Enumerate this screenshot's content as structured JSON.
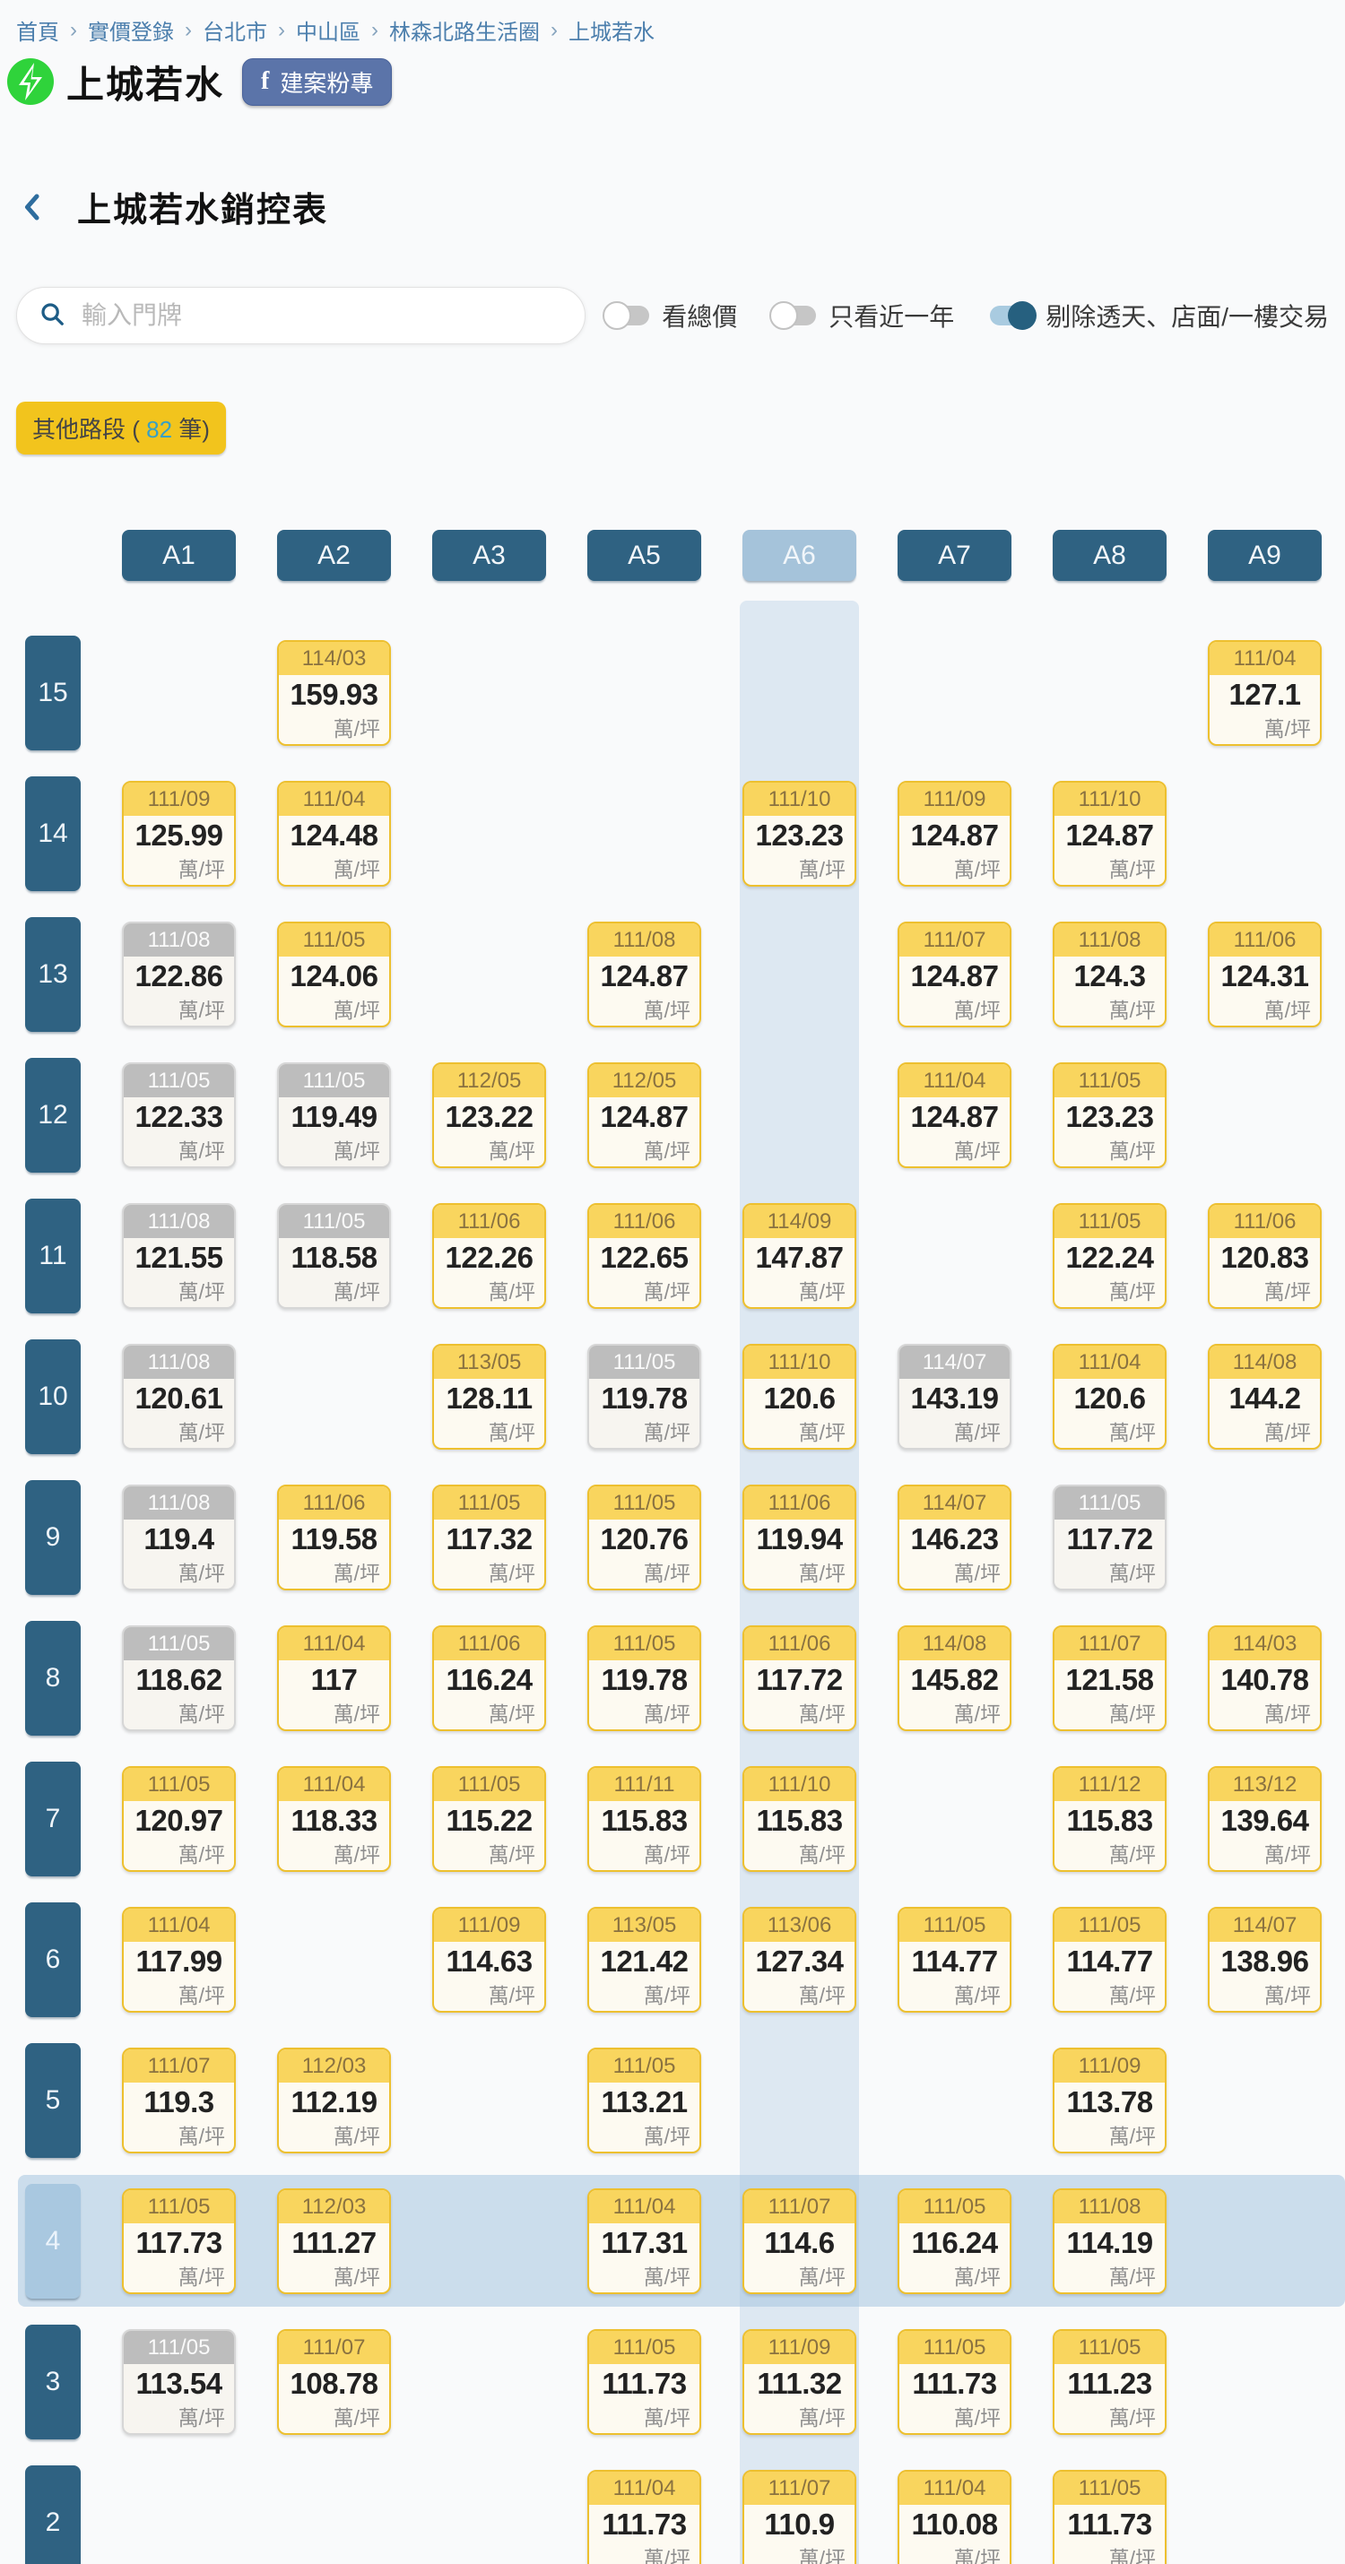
{
  "breadcrumb": {
    "separator": "›",
    "items": [
      "首頁",
      "實價登錄",
      "台北市",
      "中山區",
      "林森北路生活圈",
      "上城若水"
    ]
  },
  "header": {
    "title": "上城若水",
    "fb_icon_letter": "f",
    "fb_button": "建案粉專"
  },
  "subheader": {
    "title": "上城若水銷控表"
  },
  "controls": {
    "search": {
      "placeholder": "輸入門牌",
      "icon": "search-icon"
    },
    "toggles": [
      {
        "label": "看總價",
        "on": false
      },
      {
        "label": "只看近一年",
        "on": false
      },
      {
        "label": "剔除透天、店面/一樓交易",
        "on": true
      }
    ]
  },
  "filter_badge": {
    "prefix": "其他路段 ( ",
    "count": "82",
    "suffix": " 筆)"
  },
  "table": {
    "unit_label": "萬/坪",
    "columns": [
      {
        "id": "A1"
      },
      {
        "id": "A2"
      },
      {
        "id": "A3"
      },
      {
        "id": "A5"
      },
      {
        "id": "A6",
        "selected": true
      },
      {
        "id": "A7"
      },
      {
        "id": "A8"
      },
      {
        "id": "A9"
      }
    ],
    "floors": [
      {
        "floor": "15",
        "cells": [
          {
            "col": "A2",
            "date": "114/03",
            "price": "159.93",
            "style": "yellow"
          },
          {
            "col": "A9",
            "date": "111/04",
            "price": "127.1",
            "style": "yellow"
          }
        ]
      },
      {
        "floor": "14",
        "cells": [
          {
            "col": "A1",
            "date": "111/09",
            "price": "125.99",
            "style": "yellow"
          },
          {
            "col": "A2",
            "date": "111/04",
            "price": "124.48",
            "style": "yellow"
          },
          {
            "col": "A6",
            "date": "111/10",
            "price": "123.23",
            "style": "yellow"
          },
          {
            "col": "A7",
            "date": "111/09",
            "price": "124.87",
            "style": "yellow"
          },
          {
            "col": "A8",
            "date": "111/10",
            "price": "124.87",
            "style": "yellow"
          }
        ]
      },
      {
        "floor": "13",
        "cells": [
          {
            "col": "A1",
            "date": "111/08",
            "price": "122.86",
            "style": "gray"
          },
          {
            "col": "A2",
            "date": "111/05",
            "price": "124.06",
            "style": "yellow"
          },
          {
            "col": "A5",
            "date": "111/08",
            "price": "124.87",
            "style": "yellow"
          },
          {
            "col": "A7",
            "date": "111/07",
            "price": "124.87",
            "style": "yellow"
          },
          {
            "col": "A8",
            "date": "111/08",
            "price": "124.3",
            "style": "yellow"
          },
          {
            "col": "A9",
            "date": "111/06",
            "price": "124.31",
            "style": "yellow"
          }
        ]
      },
      {
        "floor": "12",
        "cells": [
          {
            "col": "A1",
            "date": "111/05",
            "price": "122.33",
            "style": "gray"
          },
          {
            "col": "A2",
            "date": "111/05",
            "price": "119.49",
            "style": "gray"
          },
          {
            "col": "A3",
            "date": "112/05",
            "price": "123.22",
            "style": "yellow"
          },
          {
            "col": "A5",
            "date": "112/05",
            "price": "124.87",
            "style": "yellow"
          },
          {
            "col": "A7",
            "date": "111/04",
            "price": "124.87",
            "style": "yellow"
          },
          {
            "col": "A8",
            "date": "111/05",
            "price": "123.23",
            "style": "yellow"
          }
        ]
      },
      {
        "floor": "11",
        "cells": [
          {
            "col": "A1",
            "date": "111/08",
            "price": "121.55",
            "style": "gray"
          },
          {
            "col": "A2",
            "date": "111/05",
            "price": "118.58",
            "style": "gray"
          },
          {
            "col": "A3",
            "date": "111/06",
            "price": "122.26",
            "style": "yellow"
          },
          {
            "col": "A5",
            "date": "111/06",
            "price": "122.65",
            "style": "yellow"
          },
          {
            "col": "A6",
            "date": "114/09",
            "price": "147.87",
            "style": "yellow"
          },
          {
            "col": "A8",
            "date": "111/05",
            "price": "122.24",
            "style": "yellow"
          },
          {
            "col": "A9",
            "date": "111/06",
            "price": "120.83",
            "style": "yellow"
          }
        ]
      },
      {
        "floor": "10",
        "cells": [
          {
            "col": "A1",
            "date": "111/08",
            "price": "120.61",
            "style": "gray"
          },
          {
            "col": "A3",
            "date": "113/05",
            "price": "128.11",
            "style": "yellow"
          },
          {
            "col": "A5",
            "date": "111/05",
            "price": "119.78",
            "style": "gray"
          },
          {
            "col": "A6",
            "date": "111/10",
            "price": "120.6",
            "style": "yellow"
          },
          {
            "col": "A7",
            "date": "114/07",
            "price": "143.19",
            "style": "gray"
          },
          {
            "col": "A8",
            "date": "111/04",
            "price": "120.6",
            "style": "yellow"
          },
          {
            "col": "A9",
            "date": "114/08",
            "price": "144.2",
            "style": "yellow"
          }
        ]
      },
      {
        "floor": "9",
        "cells": [
          {
            "col": "A1",
            "date": "111/08",
            "price": "119.4",
            "style": "gray"
          },
          {
            "col": "A2",
            "date": "111/06",
            "price": "119.58",
            "style": "yellow"
          },
          {
            "col": "A3",
            "date": "111/05",
            "price": "117.32",
            "style": "yellow"
          },
          {
            "col": "A5",
            "date": "111/05",
            "price": "120.76",
            "style": "yellow"
          },
          {
            "col": "A6",
            "date": "111/06",
            "price": "119.94",
            "style": "yellow"
          },
          {
            "col": "A7",
            "date": "114/07",
            "price": "146.23",
            "style": "yellow"
          },
          {
            "col": "A8",
            "date": "111/05",
            "price": "117.72",
            "style": "gray"
          }
        ]
      },
      {
        "floor": "8",
        "cells": [
          {
            "col": "A1",
            "date": "111/05",
            "price": "118.62",
            "style": "gray"
          },
          {
            "col": "A2",
            "date": "111/04",
            "price": "117",
            "style": "yellow"
          },
          {
            "col": "A3",
            "date": "111/06",
            "price": "116.24",
            "style": "yellow"
          },
          {
            "col": "A5",
            "date": "111/05",
            "price": "119.78",
            "style": "yellow"
          },
          {
            "col": "A6",
            "date": "111/06",
            "price": "117.72",
            "style": "yellow"
          },
          {
            "col": "A7",
            "date": "114/08",
            "price": "145.82",
            "style": "yellow"
          },
          {
            "col": "A8",
            "date": "111/07",
            "price": "121.58",
            "style": "yellow"
          },
          {
            "col": "A9",
            "date": "114/03",
            "price": "140.78",
            "style": "yellow"
          }
        ]
      },
      {
        "floor": "7",
        "cells": [
          {
            "col": "A1",
            "date": "111/05",
            "price": "120.97",
            "style": "yellow"
          },
          {
            "col": "A2",
            "date": "111/04",
            "price": "118.33",
            "style": "yellow"
          },
          {
            "col": "A3",
            "date": "111/05",
            "price": "115.22",
            "style": "yellow"
          },
          {
            "col": "A5",
            "date": "111/11",
            "price": "115.83",
            "style": "yellow"
          },
          {
            "col": "A6",
            "date": "111/10",
            "price": "115.83",
            "style": "yellow"
          },
          {
            "col": "A8",
            "date": "111/12",
            "price": "115.83",
            "style": "yellow"
          },
          {
            "col": "A9",
            "date": "113/12",
            "price": "139.64",
            "style": "yellow"
          }
        ]
      },
      {
        "floor": "6",
        "cells": [
          {
            "col": "A1",
            "date": "111/04",
            "price": "117.99",
            "style": "yellow"
          },
          {
            "col": "A3",
            "date": "111/09",
            "price": "114.63",
            "style": "yellow"
          },
          {
            "col": "A5",
            "date": "113/05",
            "price": "121.42",
            "style": "yellow"
          },
          {
            "col": "A6",
            "date": "113/06",
            "price": "127.34",
            "style": "yellow"
          },
          {
            "col": "A7",
            "date": "111/05",
            "price": "114.77",
            "style": "yellow"
          },
          {
            "col": "A8",
            "date": "111/05",
            "price": "114.77",
            "style": "yellow"
          },
          {
            "col": "A9",
            "date": "114/07",
            "price": "138.96",
            "style": "yellow"
          }
        ]
      },
      {
        "floor": "5",
        "cells": [
          {
            "col": "A1",
            "date": "111/07",
            "price": "119.3",
            "style": "yellow"
          },
          {
            "col": "A2",
            "date": "112/03",
            "price": "112.19",
            "style": "yellow"
          },
          {
            "col": "A5",
            "date": "111/05",
            "price": "113.21",
            "style": "yellow"
          },
          {
            "col": "A8",
            "date": "111/09",
            "price": "113.78",
            "style": "yellow"
          }
        ]
      },
      {
        "floor": "4",
        "highlighted": true,
        "cells": [
          {
            "col": "A1",
            "date": "111/05",
            "price": "117.73",
            "style": "yellow"
          },
          {
            "col": "A2",
            "date": "112/03",
            "price": "111.27",
            "style": "yellow"
          },
          {
            "col": "A5",
            "date": "111/04",
            "price": "117.31",
            "style": "yellow"
          },
          {
            "col": "A6",
            "date": "111/07",
            "price": "114.6",
            "style": "yellow"
          },
          {
            "col": "A7",
            "date": "111/05",
            "price": "116.24",
            "style": "yellow"
          },
          {
            "col": "A8",
            "date": "111/08",
            "price": "114.19",
            "style": "yellow"
          }
        ]
      },
      {
        "floor": "3",
        "cells": [
          {
            "col": "A1",
            "date": "111/05",
            "price": "113.54",
            "style": "gray"
          },
          {
            "col": "A2",
            "date": "111/07",
            "price": "108.78",
            "style": "yellow"
          },
          {
            "col": "A5",
            "date": "111/05",
            "price": "111.73",
            "style": "yellow"
          },
          {
            "col": "A6",
            "date": "111/09",
            "price": "111.32",
            "style": "yellow"
          },
          {
            "col": "A7",
            "date": "111/05",
            "price": "111.73",
            "style": "yellow"
          },
          {
            "col": "A8",
            "date": "111/05",
            "price": "111.23",
            "style": "yellow"
          }
        ]
      },
      {
        "floor": "2",
        "cells": [
          {
            "col": "A5",
            "date": "111/04",
            "price": "111.73",
            "style": "yellow"
          },
          {
            "col": "A6",
            "date": "111/07",
            "price": "110.9",
            "style": "yellow"
          },
          {
            "col": "A7",
            "date": "111/04",
            "price": "110.08",
            "style": "yellow"
          },
          {
            "col": "A8",
            "date": "111/05",
            "price": "111.73",
            "style": "yellow"
          }
        ]
      }
    ]
  },
  "colors": {
    "header_chip": "#2F6282",
    "selected_chip": "#A5C3DA",
    "column_strip": "#DDE8F2",
    "row_highlight": "#CFE0EE",
    "card_yellow_border": "#EDC02F",
    "card_yellow_header": "#F9D55E",
    "card_gray_header": "#BDBDBD",
    "badge_bg": "#F2C41D",
    "badge_count": "#38A0C4",
    "facebook_btn": "#5B74A9",
    "logo_green": "#2FD33B",
    "breadcrumb_link": "#4C7FAD",
    "toggle_on": "#26607F"
  }
}
